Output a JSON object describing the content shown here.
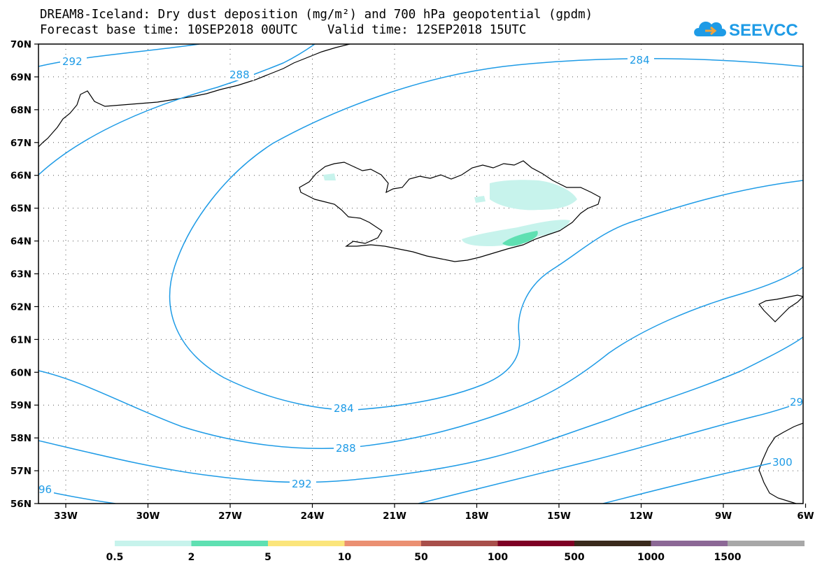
{
  "title": {
    "line1": "DREAM8-Iceland: Dry dust deposition (mg/m²) and 700 hPa geopotential (gpdm)",
    "line2": "Forecast base time: 10SEP2018 00UTC    Valid time: 12SEP2018 15UTC"
  },
  "logo": {
    "text": "SEEVCCC",
    "icon": "cloud-icon",
    "color": "#1e9be6"
  },
  "map": {
    "lat_labels": [
      "70N",
      "69N",
      "68N",
      "67N",
      "66N",
      "65N",
      "64N",
      "63N",
      "62N",
      "61N",
      "60N",
      "59N",
      "58N",
      "57N",
      "56N"
    ],
    "lon_labels": [
      "33W",
      "30W",
      "27W",
      "24W",
      "21W",
      "18W",
      "15W",
      "12W",
      "9W",
      "6W"
    ],
    "contour_color": "#1e9be6",
    "contour_labels": [
      "292",
      "288",
      "284",
      "284",
      "288",
      "292",
      "96",
      "29",
      "300"
    ]
  },
  "colorbar": {
    "colors": [
      "#c7f3ec",
      "#5fe0b2",
      "#fbe57b",
      "#eb9072",
      "#a84f4b",
      "#7e0025",
      "#3a2a1c",
      "#8c6896",
      "#a8a8a8"
    ],
    "labels": [
      "0.5",
      "2",
      "5",
      "10",
      "50",
      "100",
      "500",
      "1000",
      "1500"
    ]
  }
}
